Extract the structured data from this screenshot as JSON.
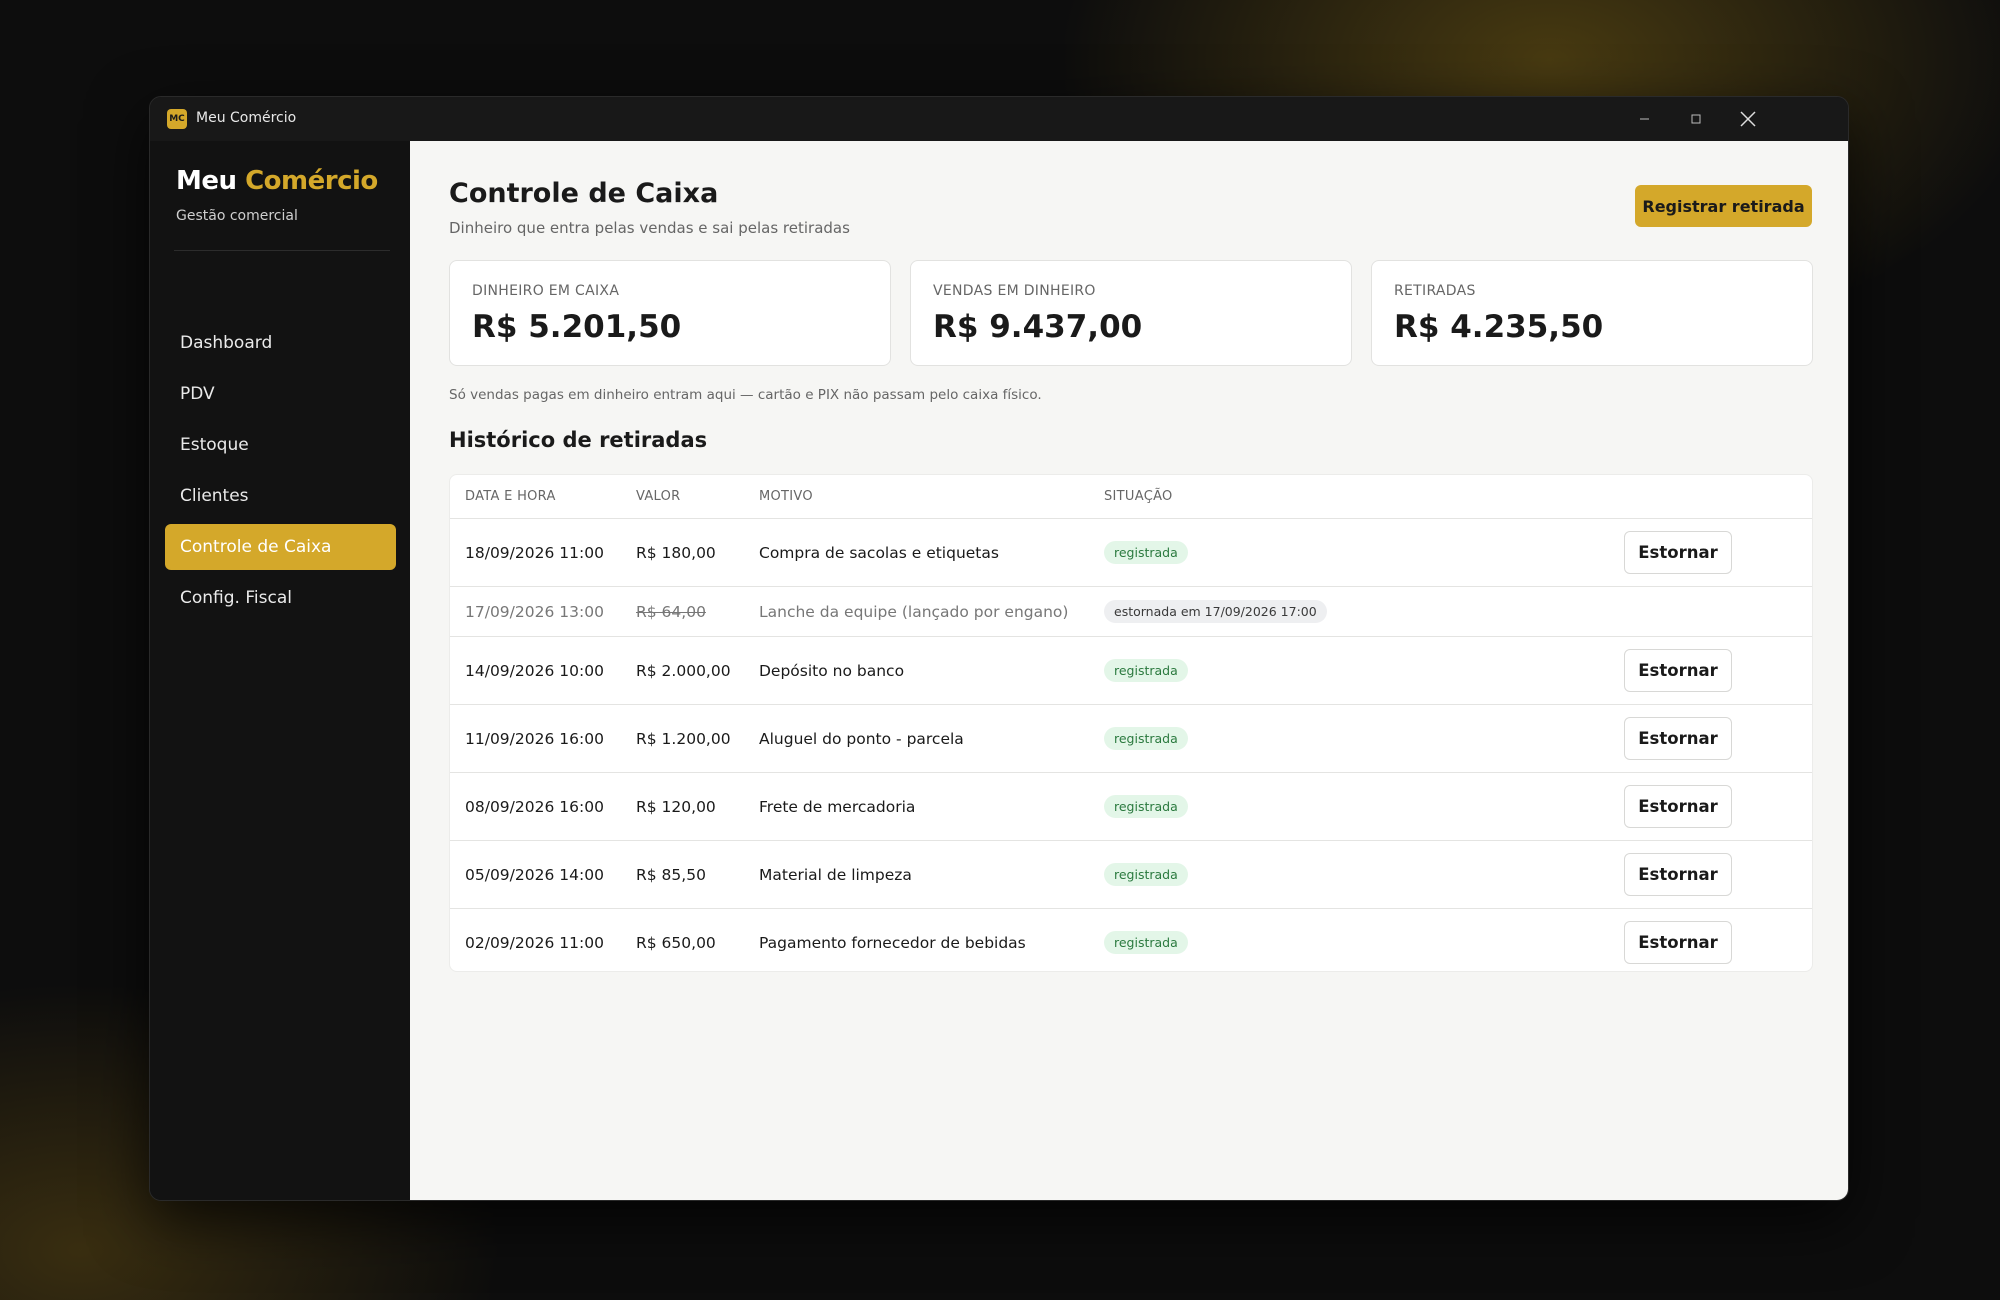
{
  "window": {
    "icon_label": "MC",
    "title": "Meu Comércio"
  },
  "sidebar": {
    "brand_first": "Meu",
    "brand_second": "Comércio",
    "subtitle": "Gestão comercial",
    "nav": [
      "Dashboard",
      "PDV",
      "Estoque",
      "Clientes",
      "Controle de Caixa",
      "Config. Fiscal"
    ],
    "active_index": 4
  },
  "header": {
    "title": "Controle de Caixa",
    "subtitle": "Dinheiro que entra pelas vendas e sai pelas retiradas",
    "button": "Registrar retirada"
  },
  "cards": [
    {
      "label": "DINHEIRO EM CAIXA",
      "value": "R$ 5.201,50"
    },
    {
      "label": "VENDAS EM DINHEIRO",
      "value": "R$ 9.437,00"
    },
    {
      "label": "RETIRADAS",
      "value": "R$ 4.235,50"
    }
  ],
  "note": "Só vendas pagas em dinheiro entram aqui — cartão e PIX não passam pelo caixa físico.",
  "history": {
    "title": "Histórico de retiradas",
    "columns": [
      "DATA E HORA",
      "VALOR",
      "MOTIVO",
      "SITUAÇÃO"
    ],
    "rows": [
      {
        "date": "18/09/2026 11:00",
        "value": "R$ 180,00",
        "reason": "Compra de sacolas e etiquetas",
        "status": "registrada",
        "action": "Estornar"
      },
      {
        "date": "17/09/2026 13:00",
        "value": "R$ 64,00",
        "reason": "Lanche da equipe (lançado por engano)",
        "status": "estornada em 17/09/2026 17:00"
      },
      {
        "date": "14/09/2026 10:00",
        "value": "R$ 2.000,00",
        "reason": "Depósito no banco",
        "status": "registrada",
        "action": "Estornar"
      },
      {
        "date": "11/09/2026 16:00",
        "value": "R$ 1.200,00",
        "reason": "Aluguel do ponto - parcela",
        "status": "registrada",
        "action": "Estornar"
      },
      {
        "date": "08/09/2026 16:00",
        "value": "R$ 120,00",
        "reason": "Frete de mercadoria",
        "status": "registrada",
        "action": "Estornar"
      },
      {
        "date": "05/09/2026 14:00",
        "value": "R$ 85,50",
        "reason": "Material de limpeza",
        "status": "registrada",
        "action": "Estornar"
      },
      {
        "date": "02/09/2026 11:00",
        "value": "R$ 650,00",
        "reason": "Pagamento fornecedor de bebidas",
        "status": "registrada",
        "action": "Estornar"
      }
    ]
  }
}
